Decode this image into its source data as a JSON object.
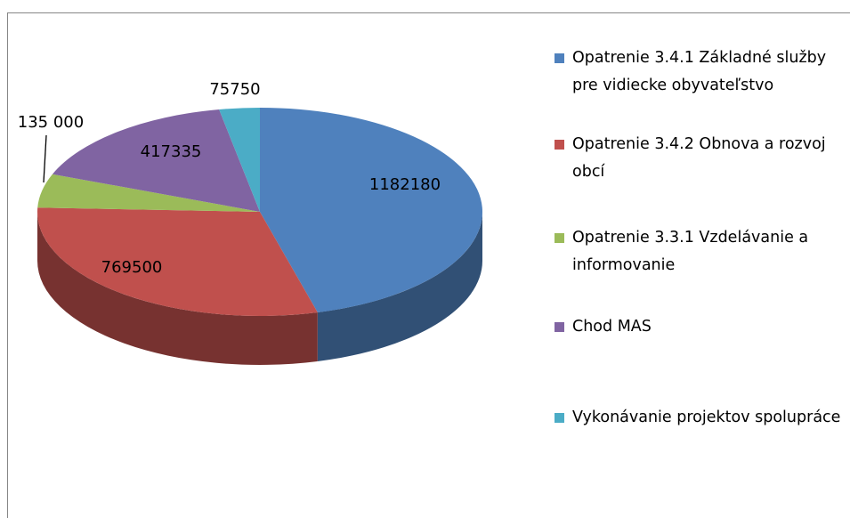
{
  "chart_data": {
    "type": "pie3d",
    "categories": [
      "Opatrenie 3.4.1 Základné služby pre vidiecke obyvateľstvo",
      "Opatrenie 3.4.2 Obnova a rozvoj obcí",
      "Opatrenie 3.3.1 Vzdelávanie a informovanie",
      "Chod MAS",
      "Vykonávanie projektov spolupráce"
    ],
    "values": [
      1182180,
      769500,
      135000,
      417335,
      75750
    ],
    "value_labels": [
      "1182180",
      "769500",
      "135 000",
      "417335",
      "75750"
    ],
    "colors": [
      "#4f81bd",
      "#c0504d",
      "#9bbb59",
      "#8064a2",
      "#4bacc6"
    ],
    "legend": "right"
  }
}
